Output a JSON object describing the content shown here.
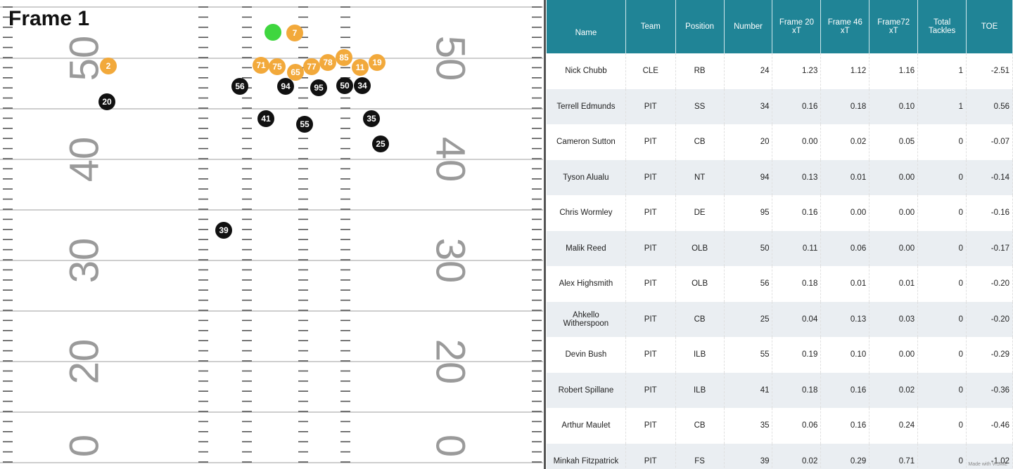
{
  "frame_label": "Frame 1",
  "field": {
    "yard_numbers": [
      "50",
      "40",
      "30",
      "20",
      "0"
    ],
    "players": [
      {
        "number": "",
        "team": "ball"
      },
      {
        "number": "7",
        "team": "offense"
      },
      {
        "number": "2",
        "team": "offense"
      },
      {
        "number": "71",
        "team": "offense"
      },
      {
        "number": "75",
        "team": "offense"
      },
      {
        "number": "65",
        "team": "offense"
      },
      {
        "number": "77",
        "team": "offense"
      },
      {
        "number": "78",
        "team": "offense"
      },
      {
        "number": "85",
        "team": "offense"
      },
      {
        "number": "11",
        "team": "offense"
      },
      {
        "number": "19",
        "team": "offense"
      },
      {
        "number": "20",
        "team": "defense"
      },
      {
        "number": "56",
        "team": "defense"
      },
      {
        "number": "94",
        "team": "defense"
      },
      {
        "number": "95",
        "team": "defense"
      },
      {
        "number": "50",
        "team": "defense"
      },
      {
        "number": "34",
        "team": "defense"
      },
      {
        "number": "41",
        "team": "defense"
      },
      {
        "number": "55",
        "team": "defense"
      },
      {
        "number": "35",
        "team": "defense"
      },
      {
        "number": "25",
        "team": "defense"
      },
      {
        "number": "39",
        "team": "defense"
      }
    ],
    "colors": {
      "offense": "#f2a93b",
      "defense": "#111111",
      "ball": "#3fd63f"
    }
  },
  "table": {
    "headers": [
      "Name",
      "Team",
      "Position",
      "Number",
      "Frame 20 xT",
      "Frame 46 xT",
      "Frame72 xT",
      "Total Tackles",
      "TOE"
    ],
    "rows": [
      [
        "Nick Chubb",
        "CLE",
        "RB",
        "24",
        "1.23",
        "1.12",
        "1.16",
        "1",
        "-2.51"
      ],
      [
        "Terrell Edmunds",
        "PIT",
        "SS",
        "34",
        "0.16",
        "0.18",
        "0.10",
        "1",
        "0.56"
      ],
      [
        "Cameron Sutton",
        "PIT",
        "CB",
        "20",
        "0.00",
        "0.02",
        "0.05",
        "0",
        "-0.07"
      ],
      [
        "Tyson Alualu",
        "PIT",
        "NT",
        "94",
        "0.13",
        "0.01",
        "0.00",
        "0",
        "-0.14"
      ],
      [
        "Chris Wormley",
        "PIT",
        "DE",
        "95",
        "0.16",
        "0.00",
        "0.00",
        "0",
        "-0.16"
      ],
      [
        "Malik Reed",
        "PIT",
        "OLB",
        "50",
        "0.11",
        "0.06",
        "0.00",
        "0",
        "-0.17"
      ],
      [
        "Alex Highsmith",
        "PIT",
        "OLB",
        "56",
        "0.18",
        "0.01",
        "0.01",
        "0",
        "-0.20"
      ],
      [
        "Ahkello Witherspoon",
        "PIT",
        "CB",
        "25",
        "0.04",
        "0.13",
        "0.03",
        "0",
        "-0.20"
      ],
      [
        "Devin Bush",
        "PIT",
        "ILB",
        "55",
        "0.19",
        "0.10",
        "0.00",
        "0",
        "-0.29"
      ],
      [
        "Robert Spillane",
        "PIT",
        "ILB",
        "41",
        "0.18",
        "0.16",
        "0.02",
        "0",
        "-0.36"
      ],
      [
        "Arthur Maulet",
        "PIT",
        "CB",
        "35",
        "0.06",
        "0.16",
        "0.24",
        "0",
        "-0.46"
      ],
      [
        "Minkah Fitzpatrick",
        "PIT",
        "FS",
        "39",
        "0.02",
        "0.29",
        "0.71",
        "0",
        "-1.02"
      ]
    ]
  },
  "watermark": "Made with VISME"
}
